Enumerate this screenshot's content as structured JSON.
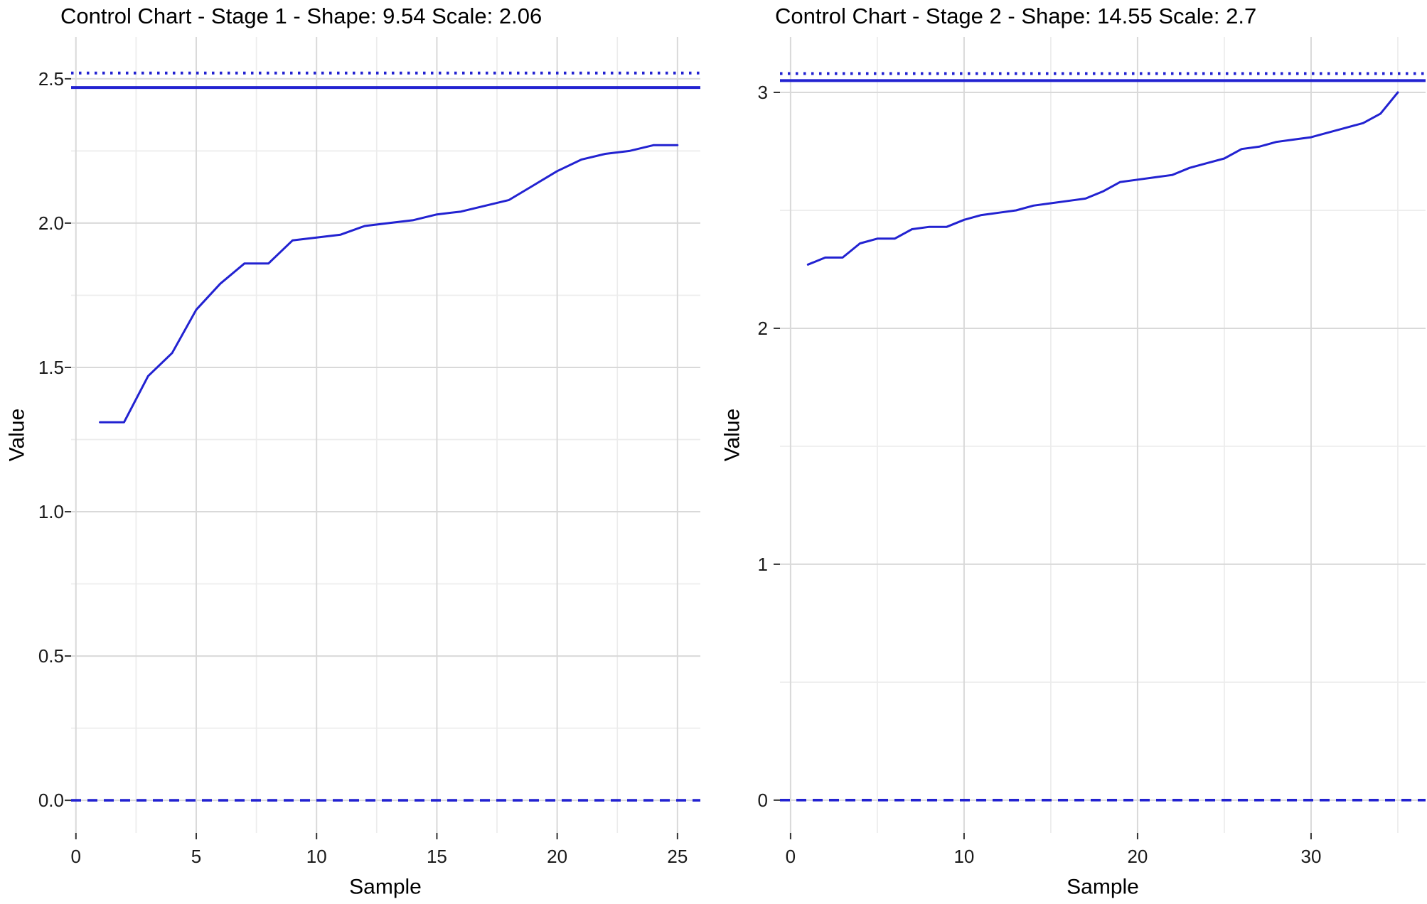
{
  "chart_data": [
    {
      "type": "line",
      "title": "Control Chart - Stage 1 - Shape: 9.54 Scale: 2.06",
      "xlabel": "Sample",
      "ylabel": "Value",
      "samples": [
        1,
        2,
        3,
        4,
        5,
        6,
        7,
        8,
        9,
        10,
        11,
        12,
        13,
        14,
        15,
        16,
        17,
        18,
        19,
        20,
        21,
        22,
        23,
        24,
        25
      ],
      "values": [
        1.31,
        1.31,
        1.47,
        1.55,
        1.7,
        1.79,
        1.86,
        1.86,
        1.94,
        1.95,
        1.96,
        1.99,
        2.0,
        2.01,
        2.03,
        2.04,
        2.06,
        2.08,
        2.13,
        2.18,
        2.22,
        2.24,
        2.25,
        2.27,
        2.27
      ],
      "limits": {
        "lcl_dashed": 0.0,
        "ucl_solid": 2.47,
        "upper_dotted": 2.52
      },
      "x_ticks": [
        0,
        5,
        10,
        15,
        20,
        25
      ],
      "x_tick_labels": [
        "0",
        "5",
        "10",
        "15",
        "20",
        "25"
      ],
      "y_ticks": [
        0.0,
        0.5,
        1.0,
        1.5,
        2.0,
        2.5
      ],
      "y_tick_labels": [
        "0.0",
        "0.5",
        "1.0",
        "1.5",
        "2.0",
        "2.5"
      ],
      "x_minor": [
        2.5,
        7.5,
        12.5,
        17.5,
        22.5
      ],
      "y_minor": [
        0.25,
        0.75,
        1.25,
        1.75,
        2.25
      ],
      "xlim": [
        -0.2,
        25.95
      ],
      "ylim": [
        -0.113,
        2.645
      ],
      "grid": true,
      "legend": "none"
    },
    {
      "type": "line",
      "title": "Control Chart - Stage 2 - Shape: 14.55 Scale: 2.7",
      "xlabel": "Sample",
      "ylabel": "Value",
      "samples": [
        1,
        2,
        3,
        4,
        5,
        6,
        7,
        8,
        9,
        10,
        11,
        12,
        13,
        14,
        15,
        16,
        17,
        18,
        19,
        20,
        21,
        22,
        23,
        24,
        25,
        26,
        27,
        28,
        29,
        30,
        31,
        32,
        33,
        34,
        35
      ],
      "values": [
        2.27,
        2.3,
        2.3,
        2.36,
        2.38,
        2.38,
        2.42,
        2.43,
        2.43,
        2.46,
        2.48,
        2.49,
        2.5,
        2.52,
        2.53,
        2.54,
        2.55,
        2.58,
        2.62,
        2.63,
        2.64,
        2.65,
        2.68,
        2.7,
        2.72,
        2.76,
        2.77,
        2.79,
        2.8,
        2.81,
        2.83,
        2.85,
        2.87,
        2.91,
        3.0
      ],
      "limits": {
        "lcl_dashed": 0.0,
        "ucl_solid": 3.05,
        "upper_dotted": 3.08
      },
      "x_ticks": [
        0,
        10,
        20,
        30
      ],
      "x_tick_labels": [
        "0",
        "10",
        "20",
        "30"
      ],
      "y_ticks": [
        0,
        1,
        2,
        3
      ],
      "y_tick_labels": [
        "0",
        "1",
        "2",
        "3"
      ],
      "x_minor": [
        5,
        15,
        25,
        35
      ],
      "y_minor": [
        0.5,
        1.5,
        2.5
      ],
      "xlim": [
        -0.61,
        36.6
      ],
      "ylim": [
        -0.139,
        3.235
      ],
      "grid": true,
      "legend": "none"
    }
  ],
  "colors": {
    "series": "#2222d1",
    "limit_lines": "#2222d1",
    "grid_major": "#d9d9d9",
    "grid_minor": "#ececec",
    "tick_mark": "#333333",
    "tick_text": "#1a1a1a",
    "title_text": "#000000",
    "background": "#ffffff"
  }
}
